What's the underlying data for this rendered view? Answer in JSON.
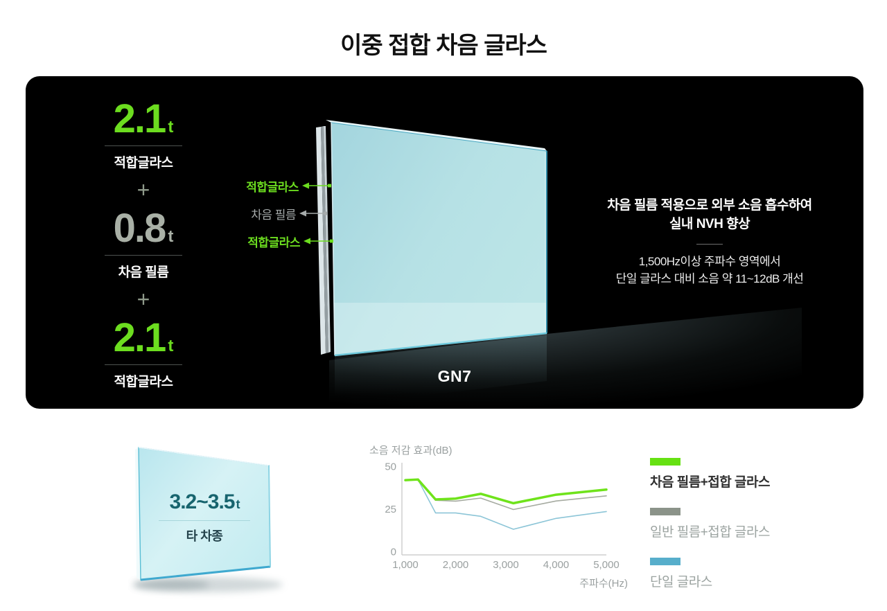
{
  "title": "이중 접합 차음 글라스",
  "colors": {
    "accent_green": "#6cdd1f",
    "value_gray": "#a9b0a6",
    "teal_text": "#17646e"
  },
  "panel": {
    "stack": {
      "plus": "+",
      "items": [
        {
          "value": "2.1",
          "unit": "t",
          "label": "적합글라스"
        },
        {
          "value": "0.8",
          "unit": "t",
          "label": "차음 필름"
        },
        {
          "value": "2.1",
          "unit": "t",
          "label": "적합글라스"
        }
      ]
    },
    "layer_labels": [
      {
        "text": "적합글라스"
      },
      {
        "text": "차음 필름"
      },
      {
        "text": "적합글라스"
      }
    ],
    "caption": "GN7",
    "info": {
      "headline_line1": "차음 필름 적용으로 외부 소음 흡수하여",
      "headline_line2": "실내 NVH 향상",
      "body_line1": "1,500Hz이상 주파수 영역에서",
      "body_line2": "단일 글라스 대비 소음 약 11~12dB 개선"
    }
  },
  "other_glass": {
    "value": "3.2~3.5",
    "unit": "t",
    "label": "타 차종"
  },
  "chart_data": {
    "type": "line",
    "title": "소음 저감 효과(dB)",
    "xlabel": "주파수(Hz)",
    "xlim": [
      1000,
      5000
    ],
    "ylim": [
      0,
      50
    ],
    "x_ticks": [
      "1,000",
      "2,000",
      "3,000",
      "4,000",
      "5,000"
    ],
    "y_ticks": [
      50,
      25,
      0
    ],
    "grid": false,
    "legend_position": "right",
    "x": [
      1000,
      1250,
      1600,
      2000,
      2500,
      3150,
      4000,
      5000
    ],
    "series": [
      {
        "name": "차음 필름+접합 글라스",
        "color": "#6fe31b",
        "width": 3.5,
        "values": [
          41.8,
          42.2,
          30.5,
          31.0,
          33.8,
          28.3,
          33.3,
          36.3
        ]
      },
      {
        "name": "일반 필름+접합 글라스",
        "color": "#a6aba1",
        "width": 1.6,
        "values": [
          41.8,
          42.2,
          30.0,
          29.5,
          31.3,
          24.6,
          29.6,
          32.6
        ]
      },
      {
        "name": "단일 글라스",
        "color": "#8cc5d7",
        "width": 1.6,
        "values": [
          41.8,
          42.2,
          22.6,
          22.6,
          20.6,
          13.0,
          19.4,
          23.4
        ]
      }
    ],
    "legend": [
      {
        "label": "차음 필름+접합 글라스",
        "swatch": "#66e112",
        "emphasis": true
      },
      {
        "label": "일반 필름+접합 글라스",
        "swatch": "#8b9389",
        "emphasis": false
      },
      {
        "label": "단일 글라스",
        "swatch": "#57aecb",
        "emphasis": false
      }
    ]
  }
}
